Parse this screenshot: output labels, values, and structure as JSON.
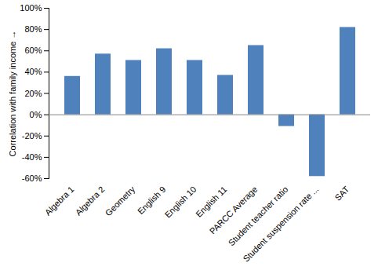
{
  "chart_data": {
    "type": "bar",
    "ylabel": "Correlation with family income",
    "categories": [
      "Algebra 1",
      "Algebra 2",
      "Geometry",
      "English 9",
      "English 10",
      "English 11",
      "PARCC Average",
      "Student teacher ratio",
      "Student suspension rate ...",
      "SAT"
    ],
    "values": [
      36,
      57,
      51,
      62,
      51,
      37,
      65,
      -11,
      -58,
      82
    ],
    "color": "#4F81BD",
    "ylim": [
      -60,
      100
    ],
    "yticks": [
      {
        "value": -60,
        "label": "-60%"
      },
      {
        "value": -40,
        "label": "-40%"
      },
      {
        "value": -20,
        "label": "-20%"
      },
      {
        "value": 0,
        "label": "0%"
      },
      {
        "value": 20,
        "label": "20%"
      },
      {
        "value": 40,
        "label": "40%"
      },
      {
        "value": 60,
        "label": "60%"
      },
      {
        "value": 80,
        "label": "80%"
      },
      {
        "value": 100,
        "label": "100%"
      }
    ],
    "grid": false
  }
}
